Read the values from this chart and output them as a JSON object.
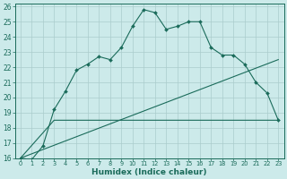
{
  "xlabel": "Humidex (Indice chaleur)",
  "bg_color": "#cceaea",
  "line_color": "#1a6b5a",
  "grid_color": "#aacccc",
  "xlim": [
    -0.5,
    23.5
  ],
  "ylim": [
    16,
    26.2
  ],
  "xticks": [
    0,
    1,
    2,
    3,
    4,
    5,
    6,
    7,
    8,
    9,
    10,
    11,
    12,
    13,
    14,
    15,
    16,
    17,
    18,
    19,
    20,
    21,
    22,
    23
  ],
  "yticks": [
    16,
    17,
    18,
    19,
    20,
    21,
    22,
    23,
    24,
    25,
    26
  ],
  "main_x": [
    0,
    1,
    2,
    3,
    4,
    5,
    6,
    7,
    8,
    9,
    10,
    11,
    12,
    13,
    14,
    15,
    16,
    17,
    18,
    19,
    20,
    21,
    22,
    23
  ],
  "main_y": [
    16.0,
    15.9,
    16.8,
    19.2,
    20.4,
    21.8,
    22.2,
    22.7,
    22.5,
    23.3,
    24.7,
    25.8,
    25.6,
    24.5,
    24.7,
    25.0,
    25.0,
    23.3,
    22.8,
    22.8,
    22.2,
    21.0,
    20.3,
    18.5
  ],
  "line2_x": [
    0,
    3,
    23
  ],
  "line2_y": [
    16.0,
    18.5,
    18.5
  ],
  "line3_x": [
    0,
    23
  ],
  "line3_y": [
    16.0,
    22.5
  ],
  "tick_fontsize": 5.5,
  "xlabel_fontsize": 6.5,
  "marker_size": 2.0,
  "linewidth": 0.8
}
